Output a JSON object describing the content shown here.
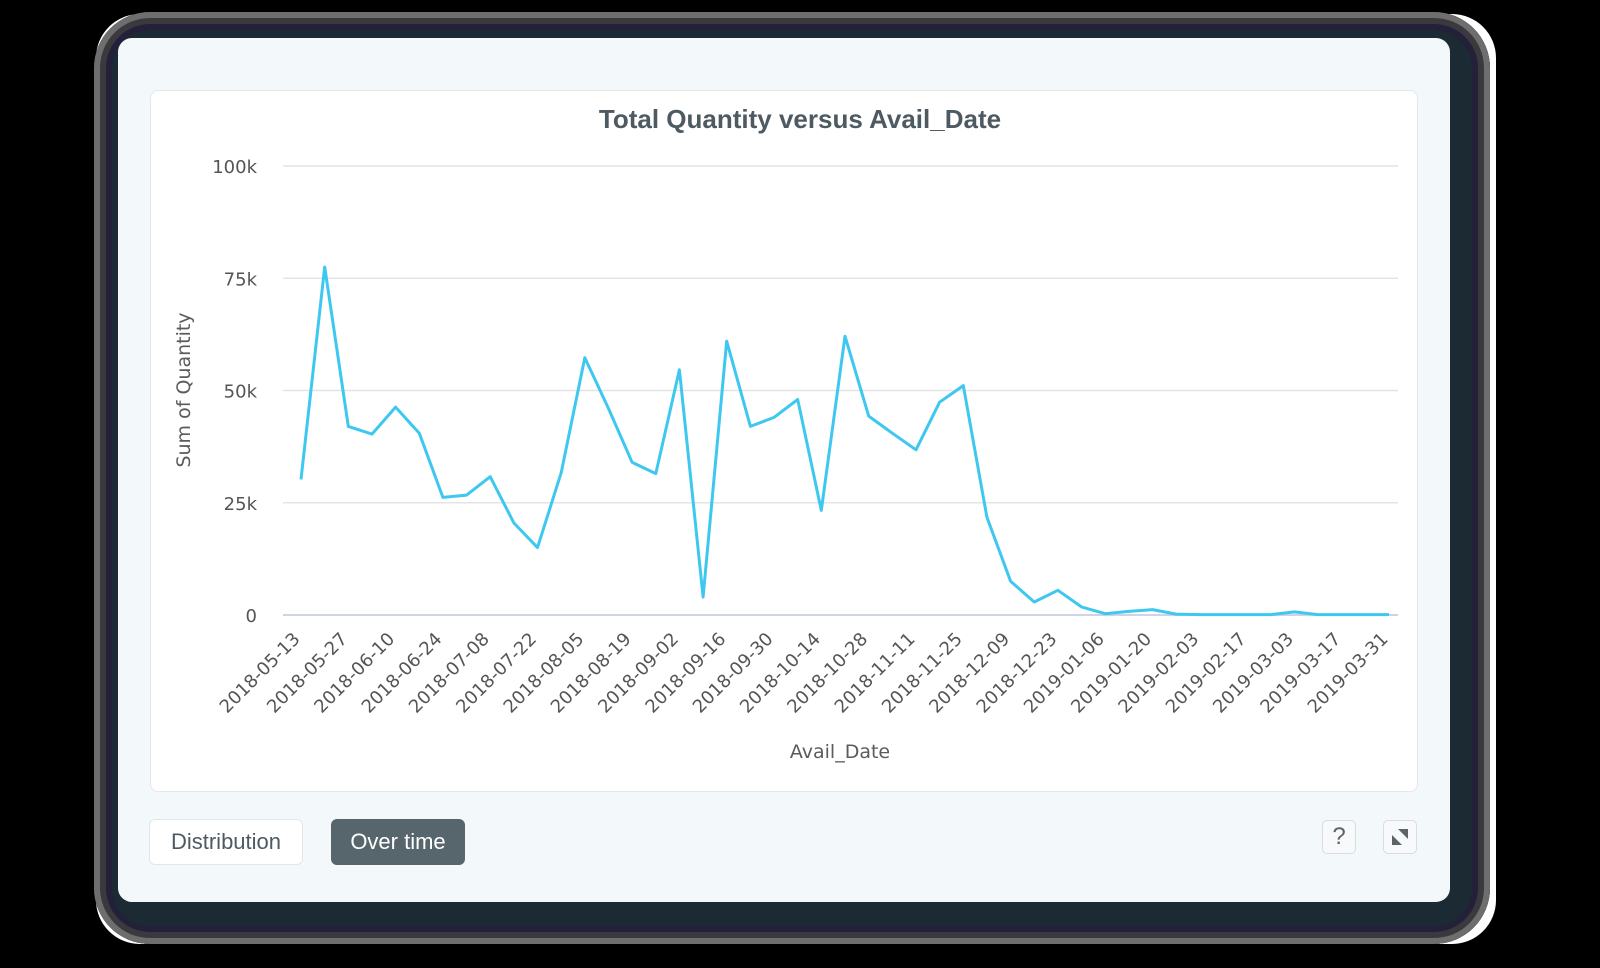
{
  "chart_data": {
    "type": "line",
    "title": "Total Quantity versus Avail_Date",
    "xlabel": "Avail_Date",
    "ylabel": "Sum of Quantity",
    "ylim": [
      0,
      100000
    ],
    "yticks": [
      0,
      25000,
      50000,
      75000,
      100000
    ],
    "ytick_labels": [
      "0",
      "25k",
      "50k",
      "75k",
      "100k"
    ],
    "xtick_labels": [
      "2018-05-13",
      "2018-05-27",
      "2018-06-10",
      "2018-06-24",
      "2018-07-08",
      "2018-07-22",
      "2018-08-05",
      "2018-08-19",
      "2018-09-02",
      "2018-09-16",
      "2018-09-30",
      "2018-10-14",
      "2018-10-28",
      "2018-11-11",
      "2018-11-25",
      "2018-12-09",
      "2018-12-23",
      "2019-01-06",
      "2019-01-20",
      "2019-02-03",
      "2019-02-17",
      "2019-03-03",
      "2019-03-17",
      "2019-03-31"
    ],
    "grid": true,
    "legend": null,
    "line_color": "#3ec8f0",
    "x": [
      "2018-05-13",
      "2018-05-20",
      "2018-05-27",
      "2018-06-03",
      "2018-06-10",
      "2018-06-17",
      "2018-06-24",
      "2018-07-01",
      "2018-07-08",
      "2018-07-15",
      "2018-07-22",
      "2018-07-29",
      "2018-08-05",
      "2018-08-12",
      "2018-08-19",
      "2018-08-26",
      "2018-09-02",
      "2018-09-09",
      "2018-09-16",
      "2018-09-23",
      "2018-09-30",
      "2018-10-07",
      "2018-10-14",
      "2018-10-21",
      "2018-10-28",
      "2018-11-04",
      "2018-11-11",
      "2018-11-18",
      "2018-11-25",
      "2018-12-02",
      "2018-12-09",
      "2018-12-16",
      "2018-12-23",
      "2018-12-30",
      "2019-01-06",
      "2019-01-13",
      "2019-01-20",
      "2019-01-27",
      "2019-02-03",
      "2019-02-10",
      "2019-02-17",
      "2019-02-24",
      "2019-03-03",
      "2019-03-10",
      "2019-03-17",
      "2019-03-24",
      "2019-03-31"
    ],
    "series": [
      {
        "name": "Sum of Quantity",
        "values": [
          30200,
          77500,
          42000,
          40300,
          46300,
          40500,
          26200,
          26700,
          30800,
          20500,
          15000,
          31700,
          57300,
          46000,
          34000,
          31500,
          54600,
          4000,
          61000,
          42000,
          44000,
          48000,
          23300,
          62100,
          44300,
          40500,
          36800,
          47400,
          51100,
          21800,
          7500,
          2900,
          5500,
          1800,
          300,
          800,
          1200,
          200,
          100,
          100,
          100,
          100,
          700,
          100,
          100,
          100,
          100
        ]
      }
    ]
  },
  "controls": {
    "distribution_label": "Distribution",
    "over_time_label": "Over time",
    "active_tab": "Over time",
    "help_label": "?"
  }
}
